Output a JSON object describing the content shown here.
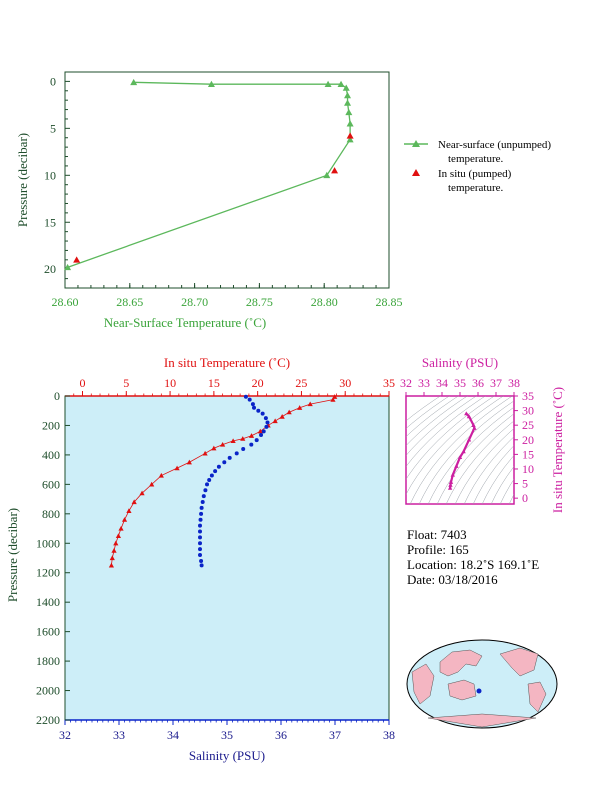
{
  "colors": {
    "green": "#5cb85c",
    "green_text": "#3aa43a",
    "dark_green": "#1e4d2b",
    "red": "#e01010",
    "blue": "#0a24c8",
    "navy": "#1a1a8c",
    "magenta": "#cc1fa0",
    "plot_bg": "#cdeef8",
    "land": "#f4b6c2"
  },
  "chart_data": [
    {
      "type": "line",
      "xlabel": "Near-Surface Temperature (˚C)",
      "ylabel": "Pressure (decibar)",
      "xlim": [
        28.6,
        28.85
      ],
      "ylim": [
        22,
        -1
      ],
      "xticks": [
        "28.60",
        "28.65",
        "28.70",
        "28.75",
        "28.80",
        "28.85"
      ],
      "yticks": [
        "0",
        "5",
        "10",
        "15",
        "20"
      ],
      "legend": [
        "Near-surface (unpumped)",
        "temperature.",
        "In situ (pumped)",
        "temperature."
      ],
      "series": [
        {
          "name": "Near-surface (unpumped) temperature.",
          "points": [
            [
              28.653,
              0.1
            ],
            [
              28.713,
              0.3
            ],
            [
              28.803,
              0.3
            ],
            [
              28.813,
              0.3
            ],
            [
              28.817,
              0.7
            ],
            [
              28.818,
              1.5
            ],
            [
              28.818,
              2.3
            ],
            [
              28.819,
              3.3
            ],
            [
              28.82,
              4.5
            ],
            [
              28.82,
              6.2
            ],
            [
              28.802,
              10.0
            ],
            [
              28.602,
              19.8
            ]
          ]
        },
        {
          "name": "In situ (pumped) temperature.",
          "points": [
            [
              28.82,
              5.8
            ],
            [
              28.808,
              9.5
            ],
            [
              28.609,
              19.0
            ]
          ]
        }
      ]
    },
    {
      "type": "scatter",
      "x_top_label": "In situ Temperature (˚C)",
      "x_bottom_label": "Salinity (PSU)",
      "ylabel": "Pressure (decibar)",
      "temp_lim": [
        -2,
        35
      ],
      "sal_lim": [
        32,
        38
      ],
      "ylim": [
        2200,
        0
      ],
      "temp_ticks": [
        "0",
        "5",
        "10",
        "15",
        "20",
        "25",
        "30",
        "35"
      ],
      "sal_ticks": [
        "32",
        "33",
        "34",
        "35",
        "36",
        "37",
        "38"
      ],
      "yticks": [
        "0",
        "200",
        "400",
        "600",
        "800",
        "1000",
        "1200",
        "1400",
        "1600",
        "1800",
        "2000",
        "2200"
      ],
      "temperature": [
        [
          28.8,
          5
        ],
        [
          28.6,
          25
        ],
        [
          26,
          55
        ],
        [
          24.8,
          80
        ],
        [
          23.6,
          110
        ],
        [
          22.8,
          140
        ],
        [
          22,
          170
        ],
        [
          21.2,
          200
        ],
        [
          20.3,
          240
        ],
        [
          19.3,
          270
        ],
        [
          18.3,
          290
        ],
        [
          17.2,
          305
        ],
        [
          16,
          330
        ],
        [
          15,
          355
        ],
        [
          14,
          390
        ],
        [
          12.2,
          450
        ],
        [
          10.8,
          490
        ],
        [
          9,
          540
        ],
        [
          7.9,
          600
        ],
        [
          6.8,
          660
        ],
        [
          5.9,
          720
        ],
        [
          5.3,
          780
        ],
        [
          4.8,
          840
        ],
        [
          4.4,
          900
        ],
        [
          4.1,
          950
        ],
        [
          3.8,
          1000
        ],
        [
          3.6,
          1050
        ],
        [
          3.4,
          1100
        ],
        [
          3.3,
          1150
        ]
      ],
      "salinity": [
        [
          35.35,
          5
        ],
        [
          35.42,
          25
        ],
        [
          35.48,
          55
        ],
        [
          35.5,
          80
        ],
        [
          35.58,
          100
        ],
        [
          35.66,
          120
        ],
        [
          35.72,
          150
        ],
        [
          35.75,
          180
        ],
        [
          35.73,
          210
        ],
        [
          35.68,
          240
        ],
        [
          35.63,
          265
        ],
        [
          35.55,
          300
        ],
        [
          35.45,
          330
        ],
        [
          35.3,
          360
        ],
        [
          35.18,
          390
        ],
        [
          35.05,
          420
        ],
        [
          34.95,
          450
        ],
        [
          34.85,
          480
        ],
        [
          34.78,
          510
        ],
        [
          34.72,
          540
        ],
        [
          34.67,
          570
        ],
        [
          34.63,
          600
        ],
        [
          34.6,
          640
        ],
        [
          34.57,
          680
        ],
        [
          34.55,
          720
        ],
        [
          34.53,
          760
        ],
        [
          34.52,
          800
        ],
        [
          34.51,
          840
        ],
        [
          34.5,
          880
        ],
        [
          34.5,
          920
        ],
        [
          34.5,
          960
        ],
        [
          34.5,
          1000
        ],
        [
          34.5,
          1040
        ],
        [
          34.5,
          1080
        ],
        [
          34.52,
          1120
        ],
        [
          34.53,
          1150
        ]
      ]
    },
    {
      "type": "line",
      "title": "Salinity (PSU)",
      "ylabel": "In situ Temperature (˚C)",
      "xlim": [
        32,
        38
      ],
      "ylim": [
        -2,
        35
      ],
      "xticks": [
        "32",
        "33",
        "34",
        "35",
        "36",
        "37",
        "38"
      ],
      "yticks": [
        "0",
        "5",
        "10",
        "15",
        "20",
        "25",
        "30",
        "35"
      ],
      "ts": [
        [
          35.35,
          29
        ],
        [
          35.5,
          28
        ],
        [
          35.75,
          25
        ],
        [
          35.8,
          24
        ],
        [
          35.5,
          20
        ],
        [
          35.2,
          16
        ],
        [
          35.0,
          14
        ],
        [
          34.8,
          11
        ],
        [
          34.6,
          8
        ],
        [
          34.5,
          5.5
        ],
        [
          34.47,
          4.5
        ],
        [
          34.45,
          3.5
        ]
      ]
    }
  ],
  "info": {
    "float": "Float:  7403",
    "profile": "Profile:  165",
    "location": "Location:  18.2˚S  169.1˚E",
    "date": "Date:  03/18/2016"
  }
}
